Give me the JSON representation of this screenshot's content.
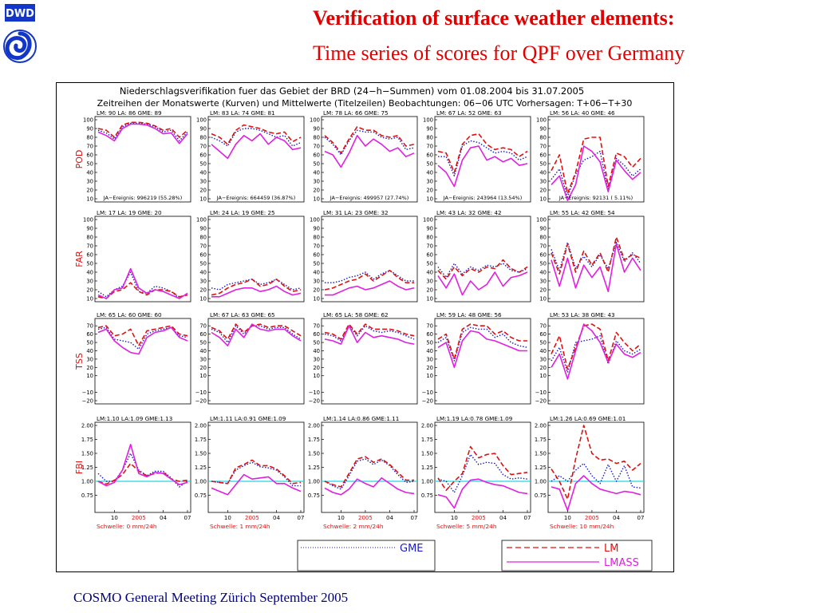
{
  "slide": {
    "logo_text": "DWD",
    "title_line1": "Verification of surface weather elements:",
    "title_line2": "Time series of  scores for QPF over Germany",
    "footer": "COSMO General Meeting  Zürich September 2005"
  },
  "figure": {
    "header_line1": "Niederschlagsverifikation fuer das Gebiet der BRD (24−h−Summen) vom 01.08.2004  bis  31.07.2005",
    "header_line2": "Zeitreihen der Monatswerte (Kurven) und Mittelwerte (Titelzeilen) Beobachtungen: 06−06 UTC Vorhersagen: T+06−T+30",
    "legend": {
      "gme": "GME",
      "lm": "LM",
      "lmass": "LMASS"
    }
  },
  "chart_data": {
    "type": "line",
    "colors": {
      "LM": "#e01010",
      "GME": "#1a1acc",
      "LMASS": "#e020e0",
      "reference": "#22d8e0",
      "label": "#e01010"
    },
    "months": [
      "08",
      "09",
      "10",
      "11",
      "12",
      "01",
      "02",
      "03",
      "04",
      "05",
      "06",
      "07"
    ],
    "x_tick_labels": [
      "10",
      "2005",
      "04",
      "07"
    ],
    "thresholds": [
      "Schwelle:   0  mm/24h",
      "Schwelle:   1  mm/24h",
      "Schwelle:   2  mm/24h",
      "Schwelle:   5  mm/24h",
      "Schwelle:  10  mm/24h"
    ],
    "rows": [
      {
        "score": "POD",
        "ylim": [
          10,
          100
        ],
        "yticks": [
          "100",
          "90",
          "80",
          "70",
          "60",
          "50",
          "40",
          "30",
          "20",
          "10"
        ],
        "headers": [
          "LM:   90  LA:   86  GME:   89",
          "LM:   83  LA:   74  GME:   81",
          "LM:   78  LA:   66  GME:   75",
          "LM:   67  LA:   52  GME:   63",
          "LM:   56  LA:   40  GME:   46"
        ],
        "footers": [
          "JA−Ereignis:    996219  (55.28%)",
          "JA−Ereignis:    664459  (36.87%)",
          "JA−Ereignis:    499957  (27.74%)",
          "JA−Ereignis:    243964  (13.54%)",
          "JA−Ereignis:     92131  (  5.11%)"
        ],
        "panels": [
          {
            "LM": [
              90,
              88,
              80,
              94,
              97,
              97,
              96,
              93,
              88,
              90,
              80,
              88
            ],
            "GME": [
              88,
              85,
              78,
              92,
              96,
              96,
              95,
              92,
              86,
              88,
              76,
              86
            ],
            "LMASS": [
              86,
              82,
              76,
              90,
              95,
              95,
              94,
              90,
              84,
              85,
              73,
              84
            ]
          },
          {
            "LM": [
              84,
              80,
              72,
              88,
              94,
              92,
              90,
              86,
              84,
              86,
              75,
              80
            ],
            "GME": [
              80,
              76,
              70,
              86,
              90,
              90,
              88,
              84,
              80,
              82,
              70,
              74
            ],
            "LMASS": [
              72,
              64,
              56,
              72,
              82,
              76,
              84,
              72,
              80,
              76,
              66,
              68
            ]
          },
          {
            "LM": [
              82,
              74,
              62,
              78,
              92,
              88,
              88,
              82,
              80,
              82,
              70,
              72
            ],
            "GME": [
              80,
              72,
              60,
              76,
              88,
              86,
              86,
              80,
              78,
              80,
              66,
              68
            ],
            "LMASS": [
              64,
              60,
              46,
              62,
              82,
              70,
              78,
              72,
              64,
              68,
              58,
              62
            ]
          },
          {
            "LM": [
              64,
              62,
              40,
              72,
              82,
              84,
              72,
              66,
              68,
              66,
              58,
              64
            ],
            "GME": [
              58,
              58,
              36,
              70,
              76,
              74,
              68,
              62,
              64,
              62,
              54,
              58
            ],
            "LMASS": [
              48,
              40,
              24,
              54,
              68,
              70,
              54,
              58,
              52,
              56,
              48,
              50
            ]
          },
          {
            "LM": [
              42,
              60,
              16,
              40,
              78,
              80,
              80,
              24,
              62,
              58,
              46,
              56
            ],
            "GME": [
              32,
              44,
              12,
              38,
              54,
              58,
              64,
              20,
              56,
              48,
              36,
              44
            ],
            "LMASS": [
              26,
              36,
              8,
              26,
              70,
              64,
              52,
              18,
              54,
              42,
              32,
              40
            ]
          }
        ]
      },
      {
        "score": "FAR",
        "ylim": [
          10,
          100
        ],
        "yticks": [
          "100",
          "90",
          "80",
          "70",
          "60",
          "50",
          "40",
          "30",
          "20",
          "10"
        ],
        "headers": [
          "LM:   17  LA:   19  GME:   20",
          "LM:   24  LA:   19  GME:   25",
          "LM:   31  LA:   23  GME:   32",
          "LM:   43  LA:   32  GME:   42",
          "LM:   55  LA:   42  GME:   54"
        ],
        "panels": [
          {
            "LM": [
              12,
              10,
              18,
              20,
              28,
              18,
              14,
              20,
              20,
              18,
              12,
              14
            ],
            "GME": [
              18,
              12,
              20,
              24,
              40,
              18,
              16,
              24,
              22,
              18,
              10,
              16
            ],
            "LMASS": [
              14,
              10,
              20,
              22,
              44,
              22,
              16,
              20,
              18,
              14,
              10,
              16
            ]
          },
          {
            "LM": [
              14,
              16,
              22,
              26,
              28,
              32,
              24,
              26,
              32,
              24,
              18,
              20
            ],
            "GME": [
              22,
              20,
              26,
              28,
              30,
              32,
              26,
              28,
              32,
              26,
              20,
              22
            ],
            "LMASS": [
              12,
              12,
              16,
              20,
              22,
              22,
              18,
              20,
              24,
              18,
              14,
              16
            ]
          },
          {
            "LM": [
              20,
              22,
              26,
              30,
              32,
              38,
              30,
              36,
              42,
              34,
              28,
              28
            ],
            "GME": [
              28,
              28,
              30,
              34,
              36,
              40,
              32,
              38,
              42,
              36,
              30,
              30
            ],
            "LMASS": [
              14,
              14,
              18,
              22,
              24,
              20,
              22,
              26,
              30,
              24,
              20,
              22
            ]
          },
          {
            "LM": [
              42,
              32,
              46,
              36,
              44,
              40,
              46,
              44,
              54,
              44,
              40,
              46
            ],
            "GME": [
              46,
              34,
              50,
              38,
              46,
              42,
              48,
              46,
              50,
              42,
              40,
              44
            ],
            "LMASS": [
              36,
              22,
              38,
              14,
              30,
              20,
              26,
              40,
              24,
              34,
              36,
              40
            ]
          },
          {
            "LM": [
              62,
              38,
              72,
              40,
              64,
              48,
              62,
              40,
              80,
              54,
              60,
              56
            ],
            "GME": [
              66,
              42,
              74,
              44,
              58,
              46,
              60,
              44,
              74,
              52,
              62,
              50
            ],
            "LMASS": [
              54,
              24,
              56,
              22,
              48,
              34,
              46,
              18,
              72,
              40,
              56,
              42
            ]
          }
        ]
      },
      {
        "score": "TSS",
        "ylim": [
          -20,
          75
        ],
        "yticks": [
          "70",
          "60",
          "50",
          "40",
          "30",
          "20",
          "10",
          "−10",
          "−20"
        ],
        "headers": [
          "LM:   65  LA:   60  GME:   60",
          "LM:   67  LA:   63  GME:   65",
          "LM:   65  LA:   58  GME:   62",
          "LM:   59  LA:   48  GME:   56",
          "LM:   53  LA:   38  GME:   43"
        ],
        "panels": [
          {
            "LM": [
              68,
              70,
              58,
              60,
              66,
              46,
              64,
              66,
              68,
              70,
              60,
              58
            ],
            "GME": [
              66,
              68,
              54,
              52,
              50,
              42,
              60,
              64,
              66,
              68,
              58,
              56
            ],
            "LMASS": [
              62,
              66,
              52,
              44,
              38,
              36,
              56,
              62,
              64,
              68,
              56,
              52
            ]
          },
          {
            "LM": [
              68,
              64,
              54,
              72,
              62,
              70,
              72,
              68,
              70,
              70,
              64,
              58
            ],
            "GME": [
              66,
              62,
              50,
              70,
              60,
              70,
              70,
              66,
              68,
              68,
              60,
              54
            ],
            "LMASS": [
              62,
              56,
              46,
              66,
              56,
              72,
              66,
              64,
              66,
              66,
              58,
              52
            ]
          },
          {
            "LM": [
              62,
              60,
              54,
              72,
              60,
              72,
              66,
              66,
              66,
              64,
              60,
              58
            ],
            "GME": [
              60,
              58,
              52,
              70,
              58,
              70,
              64,
              62,
              64,
              62,
              58,
              54
            ],
            "LMASS": [
              54,
              52,
              48,
              70,
              50,
              62,
              56,
              58,
              56,
              54,
              50,
              48
            ]
          },
          {
            "LM": [
              54,
              60,
              30,
              66,
              72,
              70,
              70,
              60,
              64,
              56,
              52,
              52
            ],
            "GME": [
              50,
              56,
              28,
              62,
              68,
              66,
              66,
              56,
              60,
              50,
              46,
              44
            ],
            "LMASS": [
              44,
              50,
              20,
              52,
              64,
              62,
              54,
              52,
              48,
              44,
              40,
              40
            ]
          },
          {
            "LM": [
              36,
              58,
              18,
              44,
              70,
              72,
              66,
              28,
              62,
              50,
              40,
              48
            ],
            "GME": [
              28,
              44,
              14,
              50,
              52,
              54,
              58,
              24,
              52,
              40,
              36,
              42
            ],
            "LMASS": [
              20,
              36,
              6,
              40,
              72,
              64,
              50,
              26,
              48,
              36,
              32,
              38
            ]
          }
        ]
      },
      {
        "score": "FBI",
        "ylim": [
          0.5,
          2.0
        ],
        "yticks": [
          "2.00",
          "1.75",
          "1.50",
          "1.25",
          "1.00",
          "0.75"
        ],
        "headers": [
          "LM:1.10  LA:1.09  GME:1.13",
          "LM:1.11  LA:0.91  GME:1.09",
          "LM:1.14  LA:0.86  GME:1.11",
          "LM:1.19  LA:0.78  GME:1.09",
          "LM:1.26  LA:0.69  GME:1.01"
        ],
        "panels": [
          {
            "LM": [
              1.0,
              0.95,
              1.02,
              1.12,
              1.32,
              1.18,
              1.1,
              1.14,
              1.16,
              1.04,
              1.0,
              1.02
            ],
            "GME": [
              1.14,
              1.0,
              1.0,
              1.2,
              1.5,
              1.2,
              1.1,
              1.18,
              1.18,
              1.06,
              0.9,
              1.0
            ],
            "LMASS": [
              1.0,
              0.92,
              0.98,
              1.2,
              1.66,
              1.14,
              1.08,
              1.16,
              1.14,
              1.04,
              0.94,
              0.98
            ]
          },
          {
            "LM": [
              1.0,
              0.98,
              0.96,
              1.24,
              1.3,
              1.38,
              1.28,
              1.28,
              1.22,
              1.1,
              0.96,
              0.98
            ],
            "GME": [
              1.0,
              0.98,
              0.96,
              1.2,
              1.28,
              1.34,
              1.26,
              1.24,
              1.2,
              1.08,
              0.92,
              0.92
            ],
            "LMASS": [
              0.88,
              0.82,
              0.76,
              0.94,
              1.12,
              1.04,
              1.06,
              1.08,
              0.96,
              0.96,
              0.88,
              0.82
            ]
          },
          {
            "LM": [
              1.0,
              0.94,
              0.9,
              1.14,
              1.4,
              1.44,
              1.34,
              1.4,
              1.3,
              1.16,
              1.02,
              1.02
            ],
            "GME": [
              1.0,
              0.92,
              0.86,
              1.1,
              1.36,
              1.4,
              1.3,
              1.38,
              1.28,
              1.12,
              0.98,
              1.0
            ],
            "LMASS": [
              0.88,
              0.8,
              0.76,
              0.86,
              1.04,
              0.96,
              0.9,
              1.06,
              0.96,
              0.86,
              0.8,
              0.78
            ]
          },
          {
            "LM": [
              1.06,
              0.84,
              1.0,
              1.14,
              1.62,
              1.42,
              1.48,
              1.5,
              1.28,
              1.12,
              1.14,
              1.16
            ],
            "GME": [
              1.04,
              1.0,
              0.8,
              1.1,
              1.48,
              1.3,
              1.34,
              1.32,
              1.12,
              1.04,
              1.06,
              1.04
            ],
            "LMASS": [
              0.76,
              0.72,
              0.52,
              0.86,
              1.02,
              1.04,
              0.98,
              0.94,
              0.92,
              0.86,
              0.8,
              0.78
            ]
          },
          {
            "LM": [
              1.22,
              1.0,
              0.68,
              1.4,
              2.0,
              1.5,
              1.38,
              1.4,
              1.32,
              1.36,
              1.2,
              1.32
            ],
            "GME": [
              1.0,
              1.1,
              1.0,
              1.2,
              1.32,
              1.1,
              0.96,
              1.3,
              1.0,
              1.28,
              0.9,
              0.88
            ],
            "LMASS": [
              0.9,
              0.86,
              0.48,
              0.96,
              1.1,
              0.96,
              0.86,
              0.82,
              0.78,
              0.82,
              0.8,
              0.76
            ]
          }
        ]
      }
    ]
  }
}
